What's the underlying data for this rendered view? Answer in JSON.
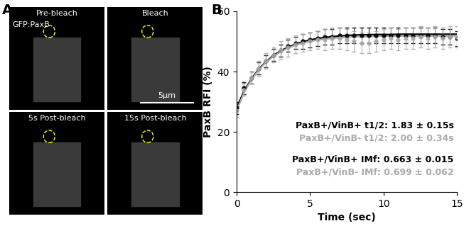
{
  "panel_a": {
    "panel_label": "A",
    "channel": "GFP:PaxB",
    "scale_bar": "5μm",
    "images": [
      "Pre-bleach",
      "Bleach",
      "5s Post-bleach",
      "15s Post-bleach"
    ]
  },
  "chart_data": {
    "type": "line",
    "panel_label": "B",
    "x_label": "Time (sec)",
    "y_label": "PaxB RFI (%)",
    "x": [
      0,
      0.5,
      1,
      1.5,
      2,
      2.5,
      3,
      3.5,
      4,
      4.5,
      5,
      5.5,
      6,
      6.5,
      7,
      7.5,
      8,
      8.5,
      9,
      9.5,
      10,
      10.5,
      11,
      11.5,
      12,
      12.5,
      13,
      13.5,
      14,
      14.5,
      15
    ],
    "xlim": [
      0,
      15
    ],
    "xticks": [
      0,
      5,
      10,
      15
    ],
    "ylim": [
      0,
      60
    ],
    "yticks": [
      0,
      20,
      40,
      60
    ],
    "series": [
      {
        "color": "#000000",
        "marker": "o",
        "values": [
          28,
          34.5,
          38,
          41,
          43.5,
          45.5,
          47,
          48.5,
          49.5,
          50,
          50.5,
          51,
          51.5,
          51.5,
          52,
          52,
          52,
          52,
          52,
          52,
          52,
          52,
          52,
          52,
          52,
          52,
          52,
          52,
          51.5,
          51.5,
          51
        ],
        "errors": [
          2,
          2,
          2,
          2,
          2,
          2,
          2,
          2,
          2,
          2.5,
          2.5,
          2.5,
          2.5,
          2.5,
          2.5,
          2.5,
          2.5,
          2.5,
          2.5,
          2.5,
          2.5,
          2.5,
          2.5,
          2.5,
          2.5,
          2.5,
          2.5,
          2.5,
          2.5,
          2.5,
          2.5
        ],
        "fit": [
          28,
          33.5,
          37.5,
          40.8,
          43.3,
          45.3,
          46.9,
          48.1,
          49.1,
          49.9,
          50.5,
          51,
          51.3,
          51.6,
          51.8,
          52,
          52.1,
          52.2,
          52.2,
          52.3,
          52.3,
          52.3,
          52.4,
          52.4,
          52.4,
          52.4,
          52.4,
          52.4,
          52.4,
          52.4,
          52.4
        ]
      },
      {
        "color": "#aaaaaa",
        "marker": "o",
        "values": [
          27,
          34,
          38,
          41,
          43.5,
          45.5,
          47,
          48,
          49,
          49.5,
          50,
          50.5,
          50.5,
          51,
          51,
          50.5,
          50,
          49.5,
          49.5,
          50,
          50.5,
          51,
          50.5,
          51,
          51,
          51.5,
          51,
          51.5,
          51,
          51.5,
          51.5
        ],
        "errors": [
          2,
          2,
          2,
          2.5,
          2.5,
          2.5,
          3,
          3,
          3,
          3,
          3,
          3,
          3.5,
          3.5,
          3.5,
          3.5,
          3.5,
          3.5,
          3.5,
          3.5,
          3.5,
          3.5,
          3.5,
          3.5,
          3.5,
          3.5,
          3.5,
          3.5,
          3.5,
          3.5,
          3.5
        ],
        "fit": [
          27,
          33,
          37.2,
          40.5,
          43.1,
          45,
          46.6,
          47.8,
          48.8,
          49.5,
          50,
          50.5,
          50.8,
          51,
          51.2,
          51.4,
          51.5,
          51.6,
          51.6,
          51.7,
          51.7,
          51.7,
          51.8,
          51.8,
          51.8,
          51.8,
          51.8,
          51.8,
          51.8,
          51.8,
          51.8
        ]
      }
    ],
    "annotations": [
      {
        "text": "PaxB+/VinB+ t1/2: 1.83 ± 0.15s",
        "color": "#000000"
      },
      {
        "text": "PaxB+/VinB- t1/2: 2.00 ± 0.34s",
        "color": "#aaaaaa"
      },
      {
        "text": "PaxB+/VinB+ IMf: 0.663 ± 0.015",
        "color": "#000000"
      },
      {
        "text": "PaxB+/VinB- IMf: 0.699 ± 0.062",
        "color": "#aaaaaa"
      }
    ]
  }
}
